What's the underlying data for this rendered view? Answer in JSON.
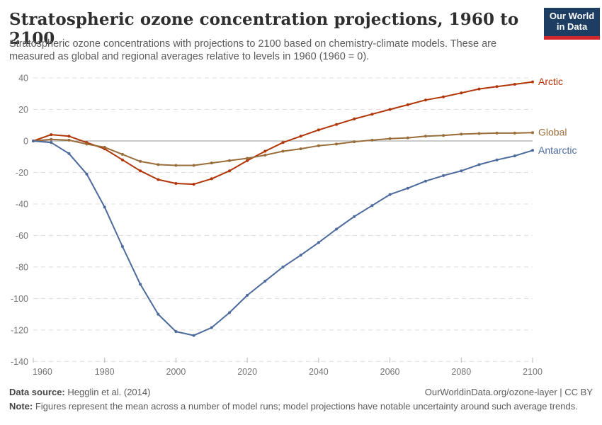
{
  "header": {
    "title": "Stratospheric ozone concentration projections, 1960 to 2100",
    "subtitle": "Stratospheric ozone concentrations with projections to 2100 based on chemistry-climate models. These are measured as global and regional averages relative to levels in 1960 (1960 = 0)."
  },
  "logo": {
    "line1": "Our World",
    "line2": "in Data",
    "bg": "#1D3D63",
    "accent": "#D2262C"
  },
  "chart_data": {
    "type": "line",
    "title": "Stratospheric ozone concentration projections, 1960 to 2100",
    "xlabel": "",
    "ylabel": "",
    "xlim": [
      1960,
      2100
    ],
    "ylim": [
      -140,
      40
    ],
    "grid": "horizontal-dashed",
    "zero_line": true,
    "point_markers": true,
    "legend_position": "right-end-labels",
    "xticks": [
      1960,
      1980,
      2000,
      2020,
      2040,
      2060,
      2080,
      2100
    ],
    "yticks": [
      40,
      20,
      0,
      -20,
      -40,
      -60,
      -80,
      -100,
      -120,
      -140
    ],
    "axis": {
      "grid_color": "#dcdcdc",
      "zero_line_color": "#949494",
      "tick_color": "#757575"
    },
    "x": [
      1960,
      1965,
      1970,
      1975,
      1980,
      1985,
      1990,
      1995,
      2000,
      2005,
      2010,
      2015,
      2020,
      2025,
      2030,
      2035,
      2040,
      2045,
      2050,
      2055,
      2060,
      2065,
      2070,
      2075,
      2080,
      2085,
      2090,
      2095,
      2100
    ],
    "series": [
      {
        "name": "Arctic",
        "color": "#B13507",
        "values": [
          0,
          4,
          3,
          -1,
          -5,
          -12,
          -19,
          -24.5,
          -27,
          -27.5,
          -24,
          -19,
          -12.5,
          -6.5,
          -1,
          3,
          7,
          10.5,
          14,
          17,
          20,
          23,
          26,
          28,
          30.5,
          33,
          34.5,
          36,
          37.5
        ]
      },
      {
        "name": "Global",
        "color": "#996D39",
        "values": [
          0,
          1,
          0.5,
          -2,
          -4,
          -8.5,
          -13,
          -15,
          -15.5,
          -15.5,
          -14,
          -12.5,
          -11,
          -9,
          -6.5,
          -5,
          -3,
          -2,
          -0.5,
          0.5,
          1.5,
          2,
          3,
          3.5,
          4.3,
          4.7,
          5,
          5,
          5.3
        ]
      },
      {
        "name": "Antarctic",
        "color": "#4C6A9C",
        "values": [
          0,
          -1,
          -8,
          -21,
          -42,
          -67,
          -91,
          -110,
          -121,
          -123.5,
          -118.5,
          -109,
          -98,
          -89,
          -80,
          -72.5,
          -64.5,
          -56,
          -48,
          -41,
          -34,
          -30,
          -25.5,
          -22,
          -19,
          -15,
          -12,
          -9.5,
          -6
        ]
      }
    ]
  },
  "footer": {
    "source_label": "Data source:",
    "source_value": "Hegglin et al. (2014)",
    "link": "OurWorldinData.org/ozone-layer | CC BY",
    "note_label": "Note:",
    "note_text": "Figures represent the mean across a number of model runs; model projections have notable uncertainty around such average trends."
  }
}
